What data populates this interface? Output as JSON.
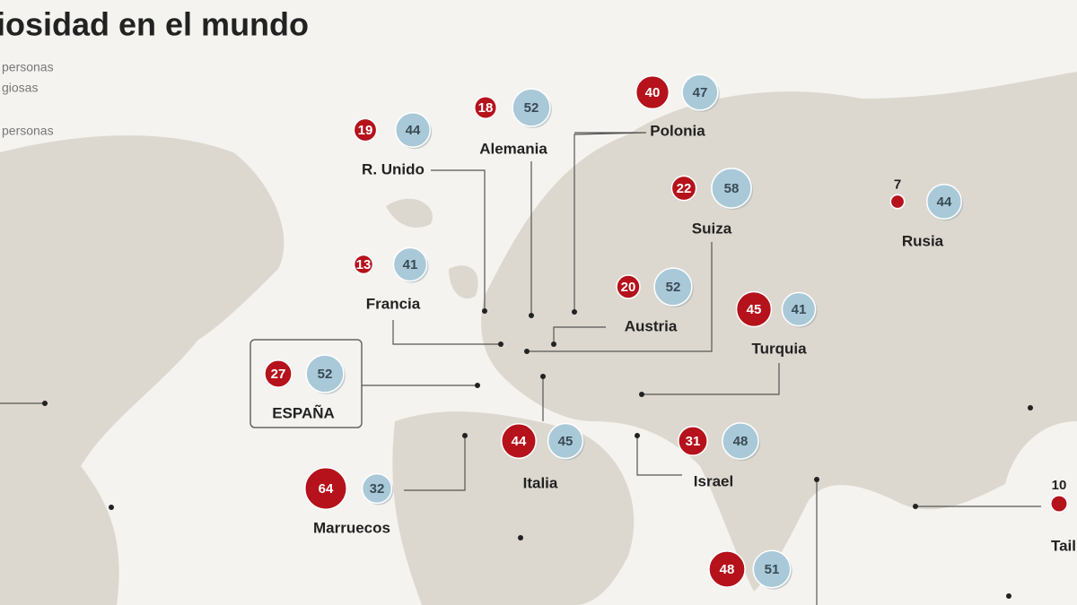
{
  "title": "iosidad en el mundo",
  "legend": [
    "personas",
    "giosas",
    "personas"
  ],
  "countries": [
    {
      "name": "R. Unido",
      "religious": 19,
      "atheist": 44
    },
    {
      "name": "Alemania",
      "religious": 18,
      "atheist": 52
    },
    {
      "name": "Polonia",
      "religious": 40,
      "atheist": 47
    },
    {
      "name": "Francia",
      "religious": 13,
      "atheist": 41
    },
    {
      "name": "Suiza",
      "religious": 22,
      "atheist": 58
    },
    {
      "name": "Rusia",
      "religious": 7,
      "atheist": 44
    },
    {
      "name": "Austria",
      "religious": 20,
      "atheist": 52
    },
    {
      "name": "Turquia",
      "religious": 45,
      "atheist": 41
    },
    {
      "name": "ESPAÑA",
      "religious": 27,
      "atheist": 52
    },
    {
      "name": "Italia",
      "religious": 44,
      "atheist": 45
    },
    {
      "name": "Israel",
      "religious": 31,
      "atheist": 48
    },
    {
      "name": "Marruecos",
      "religious": 64,
      "atheist": 32
    },
    {
      "name": "Tail",
      "religious": 10
    },
    {
      "religious": 48,
      "atheist": 51
    }
  ]
}
